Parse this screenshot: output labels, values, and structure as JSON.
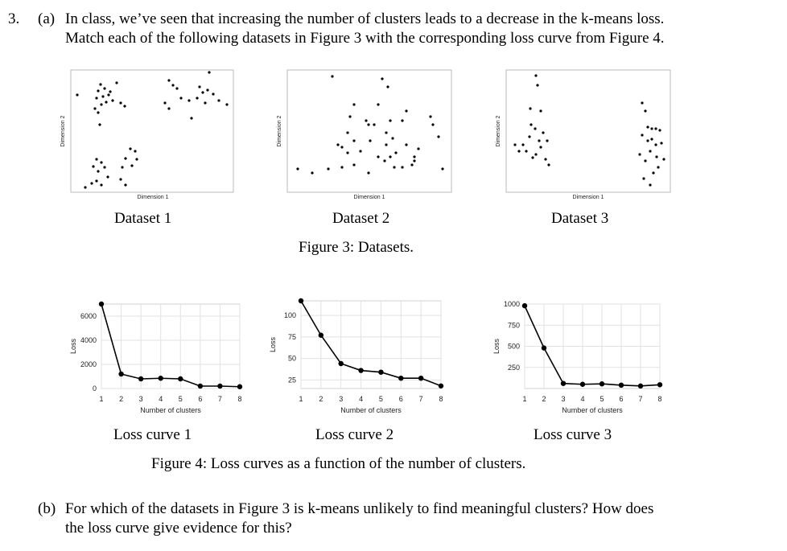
{
  "question": {
    "number": "3.",
    "part_a_label": "(a)",
    "part_a_line1": "In class, we’ve seen that increasing the number of clusters leads to a decrease in the k-means loss.",
    "part_a_line2": "Match each of the following datasets in Figure 3 with the corresponding loss curve from Figure 4.",
    "part_b_label": "(b)",
    "part_b_line1": "For which of the datasets in Figure 3 is k-means unlikely to find meaningful clusters? How does",
    "part_b_line2": "the loss curve give evidence for this?"
  },
  "figure3": {
    "caption": "Figure 3: Datasets.",
    "x_axis_label": "Dimension 1",
    "y_axis_label": "Dimension 2",
    "dataset_labels": [
      "Dataset 1",
      "Dataset 2",
      "Dataset 3"
    ]
  },
  "figure4": {
    "caption": "Figure 4: Loss curves as a function of the number of clusters.",
    "curve_labels": [
      "Loss curve 1",
      "Loss curve 2",
      "Loss curve 3"
    ]
  },
  "chart_data": [
    {
      "type": "line",
      "title": "Loss curve 1",
      "xlabel": "Number of clusters",
      "ylabel": "Loss",
      "x": [
        1,
        2,
        3,
        4,
        5,
        6,
        7,
        8
      ],
      "values": [
        7000,
        1200,
        800,
        850,
        800,
        200,
        200,
        150
      ],
      "xlim": [
        1,
        8
      ],
      "ylim": [
        0,
        7000
      ],
      "yticks": [
        0,
        2000,
        4000,
        6000
      ],
      "xticks": [
        1,
        2,
        3,
        4,
        5,
        6,
        7,
        8
      ],
      "grid": true
    },
    {
      "type": "line",
      "title": "Loss curve 2",
      "xlabel": "Number of clusters",
      "ylabel": "Loss",
      "x": [
        1,
        2,
        3,
        4,
        5,
        6,
        7,
        8
      ],
      "values": [
        117,
        77,
        44,
        36,
        34,
        27,
        27,
        18
      ],
      "xlim": [
        1,
        8
      ],
      "ylim": [
        15,
        117
      ],
      "yticks": [
        25,
        50,
        75,
        100
      ],
      "xticks": [
        1,
        2,
        3,
        4,
        5,
        6,
        7,
        8
      ],
      "grid": true
    },
    {
      "type": "line",
      "title": "Loss curve 3",
      "xlabel": "Number of clusters",
      "ylabel": "Loss",
      "x": [
        1,
        2,
        3,
        4,
        5,
        6,
        7,
        8
      ],
      "values": [
        980,
        480,
        60,
        50,
        55,
        40,
        30,
        45
      ],
      "xlim": [
        1,
        8
      ],
      "ylim": [
        0,
        1000
      ],
      "yticks": [
        250,
        500,
        750,
        1000
      ],
      "xticks": [
        1,
        2,
        3,
        4,
        5,
        6,
        7,
        8
      ],
      "grid": true
    }
  ]
}
